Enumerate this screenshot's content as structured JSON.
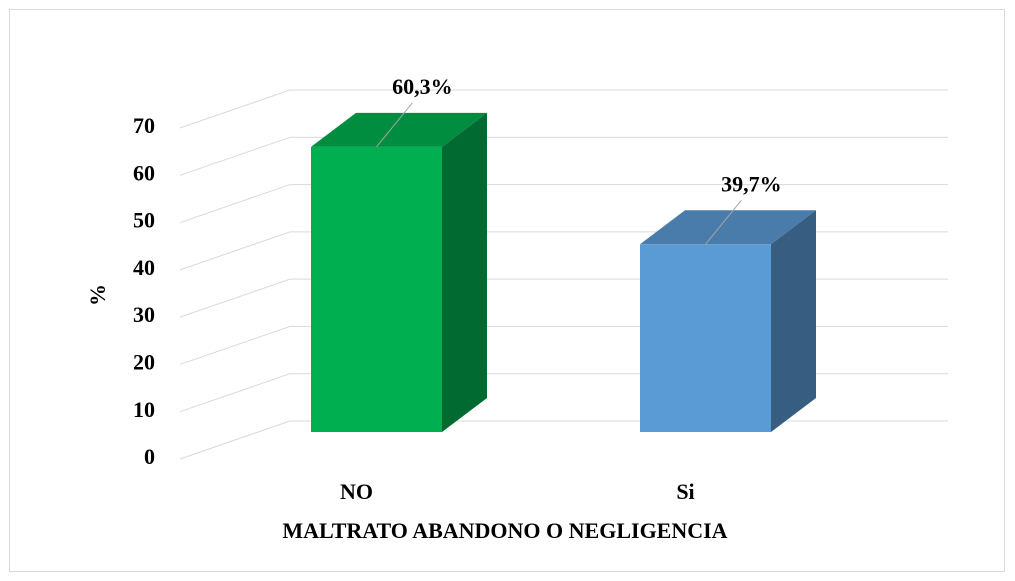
{
  "chart_data": {
    "type": "bar3d",
    "categories": [
      "NO",
      "Si"
    ],
    "series": [
      {
        "values": [
          60.3,
          39.7
        ],
        "value_labels": [
          "60,3%",
          "39,7%"
        ],
        "colors": [
          "#00b050",
          "#5b9bd5"
        ]
      }
    ],
    "ylim": [
      0,
      70
    ],
    "yticks": [
      0,
      10,
      20,
      30,
      40,
      50,
      60,
      70
    ],
    "y_label": "%",
    "x_label": "MALTRATO ABANDONO O NEGLIGENCIA",
    "grid": true
  }
}
